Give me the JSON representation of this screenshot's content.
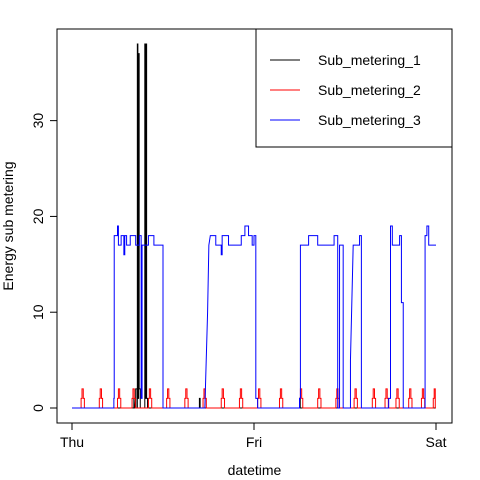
{
  "chart_data": {
    "type": "line",
    "title": "",
    "xlabel": "datetime",
    "ylabel": "Energy sub metering",
    "x_unit": "day",
    "xlim": [
      0,
      2
    ],
    "ylim": [
      0,
      38
    ],
    "x_ticks": [
      {
        "value": 0,
        "label": "Thu"
      },
      {
        "value": 1,
        "label": "Fri"
      },
      {
        "value": 2,
        "label": "Sat"
      }
    ],
    "y_ticks": [
      0,
      10,
      20,
      30
    ],
    "legend_position": "top-right",
    "grid": false,
    "series": [
      {
        "name": "Sub_metering_1",
        "color": "#000000",
        "points": [
          [
            0.0,
            0
          ],
          [
            0.34,
            0
          ],
          [
            0.34,
            1
          ],
          [
            0.345,
            0
          ],
          [
            0.35,
            0
          ],
          [
            0.35,
            2
          ],
          [
            0.358,
            2
          ],
          [
            0.358,
            0
          ],
          [
            0.359,
            0
          ],
          [
            0.359,
            38
          ],
          [
            0.362,
            38
          ],
          [
            0.362,
            1
          ],
          [
            0.366,
            1
          ],
          [
            0.366,
            37
          ],
          [
            0.369,
            37
          ],
          [
            0.369,
            2
          ],
          [
            0.375,
            2
          ],
          [
            0.375,
            0
          ],
          [
            0.4,
            0
          ],
          [
            0.4,
            38
          ],
          [
            0.403,
            38
          ],
          [
            0.403,
            1
          ],
          [
            0.407,
            1
          ],
          [
            0.407,
            38
          ],
          [
            0.41,
            38
          ],
          [
            0.41,
            1
          ],
          [
            0.415,
            1
          ],
          [
            0.415,
            0
          ],
          [
            0.7,
            0
          ],
          [
            0.7,
            1
          ],
          [
            0.704,
            1
          ],
          [
            0.704,
            0
          ],
          [
            1.25,
            0
          ],
          [
            1.25,
            1
          ],
          [
            1.254,
            1
          ],
          [
            1.254,
            0
          ],
          [
            2.0,
            0
          ]
        ]
      },
      {
        "name": "Sub_metering_2",
        "color": "#ff0000",
        "points": [
          [
            0.0,
            0
          ],
          [
            0.05,
            0
          ],
          [
            0.05,
            1
          ],
          [
            0.055,
            1
          ],
          [
            0.055,
            2
          ],
          [
            0.062,
            2
          ],
          [
            0.062,
            1
          ],
          [
            0.068,
            1
          ],
          [
            0.068,
            0
          ],
          [
            0.15,
            0
          ],
          [
            0.15,
            1
          ],
          [
            0.155,
            1
          ],
          [
            0.155,
            2
          ],
          [
            0.162,
            2
          ],
          [
            0.162,
            1
          ],
          [
            0.168,
            1
          ],
          [
            0.168,
            0
          ],
          [
            0.25,
            0
          ],
          [
            0.25,
            1
          ],
          [
            0.255,
            1
          ],
          [
            0.255,
            2
          ],
          [
            0.262,
            2
          ],
          [
            0.262,
            1
          ],
          [
            0.268,
            1
          ],
          [
            0.268,
            0
          ],
          [
            0.33,
            0
          ],
          [
            0.33,
            1
          ],
          [
            0.335,
            1
          ],
          [
            0.335,
            2
          ],
          [
            0.342,
            2
          ],
          [
            0.342,
            1
          ],
          [
            0.348,
            1
          ],
          [
            0.348,
            0
          ],
          [
            0.42,
            0
          ],
          [
            0.42,
            1
          ],
          [
            0.425,
            1
          ],
          [
            0.425,
            2
          ],
          [
            0.432,
            2
          ],
          [
            0.432,
            1
          ],
          [
            0.438,
            1
          ],
          [
            0.438,
            0
          ],
          [
            0.52,
            0
          ],
          [
            0.52,
            1
          ],
          [
            0.525,
            1
          ],
          [
            0.525,
            2
          ],
          [
            0.532,
            2
          ],
          [
            0.532,
            1
          ],
          [
            0.538,
            1
          ],
          [
            0.538,
            0
          ],
          [
            0.62,
            0
          ],
          [
            0.62,
            1
          ],
          [
            0.625,
            1
          ],
          [
            0.625,
            2
          ],
          [
            0.632,
            2
          ],
          [
            0.632,
            1
          ],
          [
            0.638,
            1
          ],
          [
            0.638,
            0
          ],
          [
            0.72,
            0
          ],
          [
            0.72,
            1
          ],
          [
            0.725,
            1
          ],
          [
            0.725,
            2
          ],
          [
            0.732,
            2
          ],
          [
            0.732,
            1
          ],
          [
            0.738,
            1
          ],
          [
            0.738,
            0
          ],
          [
            0.82,
            0
          ],
          [
            0.82,
            1
          ],
          [
            0.825,
            1
          ],
          [
            0.825,
            2
          ],
          [
            0.832,
            2
          ],
          [
            0.832,
            1
          ],
          [
            0.838,
            1
          ],
          [
            0.838,
            0
          ],
          [
            0.92,
            0
          ],
          [
            0.92,
            1
          ],
          [
            0.925,
            1
          ],
          [
            0.925,
            2
          ],
          [
            0.932,
            2
          ],
          [
            0.932,
            1
          ],
          [
            0.938,
            1
          ],
          [
            0.938,
            0
          ],
          [
            1.02,
            0
          ],
          [
            1.02,
            1
          ],
          [
            1.025,
            1
          ],
          [
            1.025,
            2
          ],
          [
            1.032,
            2
          ],
          [
            1.032,
            1
          ],
          [
            1.038,
            1
          ],
          [
            1.038,
            0
          ],
          [
            1.14,
            0
          ],
          [
            1.14,
            1
          ],
          [
            1.145,
            1
          ],
          [
            1.145,
            2
          ],
          [
            1.152,
            2
          ],
          [
            1.152,
            1
          ],
          [
            1.158,
            1
          ],
          [
            1.158,
            0
          ],
          [
            1.25,
            0
          ],
          [
            1.25,
            1
          ],
          [
            1.255,
            1
          ],
          [
            1.255,
            2
          ],
          [
            1.262,
            2
          ],
          [
            1.262,
            1
          ],
          [
            1.268,
            1
          ],
          [
            1.268,
            0
          ],
          [
            1.35,
            0
          ],
          [
            1.35,
            1
          ],
          [
            1.355,
            1
          ],
          [
            1.355,
            2
          ],
          [
            1.362,
            2
          ],
          [
            1.362,
            1
          ],
          [
            1.368,
            1
          ],
          [
            1.368,
            0
          ],
          [
            1.45,
            0
          ],
          [
            1.45,
            1
          ],
          [
            1.455,
            1
          ],
          [
            1.455,
            2
          ],
          [
            1.462,
            2
          ],
          [
            1.462,
            1
          ],
          [
            1.468,
            1
          ],
          [
            1.468,
            0
          ],
          [
            1.55,
            0
          ],
          [
            1.55,
            1
          ],
          [
            1.555,
            1
          ],
          [
            1.555,
            2
          ],
          [
            1.562,
            2
          ],
          [
            1.562,
            1
          ],
          [
            1.568,
            1
          ],
          [
            1.568,
            0
          ],
          [
            1.65,
            0
          ],
          [
            1.65,
            1
          ],
          [
            1.655,
            1
          ],
          [
            1.655,
            2
          ],
          [
            1.662,
            2
          ],
          [
            1.662,
            1
          ],
          [
            1.668,
            1
          ],
          [
            1.668,
            0
          ],
          [
            1.72,
            0
          ],
          [
            1.72,
            1
          ],
          [
            1.725,
            1
          ],
          [
            1.725,
            2
          ],
          [
            1.732,
            2
          ],
          [
            1.732,
            1
          ],
          [
            1.738,
            1
          ],
          [
            1.738,
            0
          ],
          [
            1.78,
            0
          ],
          [
            1.78,
            1
          ],
          [
            1.785,
            1
          ],
          [
            1.785,
            2
          ],
          [
            1.792,
            2
          ],
          [
            1.792,
            1
          ],
          [
            1.798,
            1
          ],
          [
            1.798,
            0
          ],
          [
            1.85,
            0
          ],
          [
            1.85,
            1
          ],
          [
            1.855,
            1
          ],
          [
            1.855,
            2
          ],
          [
            1.862,
            2
          ],
          [
            1.862,
            1
          ],
          [
            1.868,
            1
          ],
          [
            1.868,
            0
          ],
          [
            1.92,
            0
          ],
          [
            1.92,
            1
          ],
          [
            1.925,
            1
          ],
          [
            1.925,
            2
          ],
          [
            1.932,
            2
          ],
          [
            1.932,
            1
          ],
          [
            1.938,
            1
          ],
          [
            1.938,
            0
          ],
          [
            1.985,
            0
          ],
          [
            1.985,
            1
          ],
          [
            1.99,
            1
          ],
          [
            1.99,
            2
          ],
          [
            1.996,
            2
          ],
          [
            1.996,
            0
          ],
          [
            2.0,
            0
          ]
        ]
      },
      {
        "name": "Sub_metering_3",
        "color": "#0000ff",
        "points": [
          [
            0.0,
            0
          ],
          [
            0.23,
            0
          ],
          [
            0.23,
            1
          ],
          [
            0.232,
            1
          ],
          [
            0.232,
            18
          ],
          [
            0.25,
            18
          ],
          [
            0.25,
            19
          ],
          [
            0.255,
            19
          ],
          [
            0.255,
            17
          ],
          [
            0.27,
            17
          ],
          [
            0.27,
            18
          ],
          [
            0.285,
            18
          ],
          [
            0.285,
            16
          ],
          [
            0.29,
            16
          ],
          [
            0.29,
            18
          ],
          [
            0.3,
            18
          ],
          [
            0.3,
            17
          ],
          [
            0.32,
            17
          ],
          [
            0.32,
            18
          ],
          [
            0.35,
            18
          ],
          [
            0.35,
            17
          ],
          [
            0.37,
            17
          ],
          [
            0.37,
            18
          ],
          [
            0.38,
            18
          ],
          [
            0.38,
            1
          ],
          [
            0.385,
            1
          ],
          [
            0.385,
            17
          ],
          [
            0.42,
            17
          ],
          [
            0.42,
            18
          ],
          [
            0.45,
            18
          ],
          [
            0.45,
            17
          ],
          [
            0.5,
            17
          ],
          [
            0.5,
            0
          ],
          [
            0.73,
            0
          ],
          [
            0.745,
            10
          ],
          [
            0.752,
            17
          ],
          [
            0.76,
            18
          ],
          [
            0.79,
            18
          ],
          [
            0.79,
            17
          ],
          [
            0.82,
            17
          ],
          [
            0.82,
            16
          ],
          [
            0.825,
            16
          ],
          [
            0.825,
            18
          ],
          [
            0.86,
            18
          ],
          [
            0.86,
            17
          ],
          [
            0.93,
            17
          ],
          [
            0.93,
            18
          ],
          [
            0.95,
            18
          ],
          [
            0.95,
            19
          ],
          [
            0.97,
            19
          ],
          [
            0.97,
            18
          ],
          [
            0.99,
            18
          ],
          [
            0.99,
            17
          ],
          [
            1.0,
            17
          ],
          [
            1.0,
            18
          ],
          [
            1.01,
            18
          ],
          [
            1.01,
            1
          ],
          [
            1.02,
            1
          ],
          [
            1.02,
            0
          ],
          [
            1.25,
            0
          ],
          [
            1.25,
            1
          ],
          [
            1.255,
            1
          ],
          [
            1.255,
            17
          ],
          [
            1.3,
            17
          ],
          [
            1.3,
            18
          ],
          [
            1.35,
            18
          ],
          [
            1.35,
            17
          ],
          [
            1.44,
            17
          ],
          [
            1.44,
            18
          ],
          [
            1.46,
            18
          ],
          [
            1.46,
            0
          ],
          [
            1.47,
            0
          ],
          [
            1.47,
            17
          ],
          [
            1.49,
            17
          ],
          [
            1.49,
            0
          ],
          [
            1.53,
            0
          ],
          [
            1.53,
            5
          ],
          [
            1.545,
            17
          ],
          [
            1.58,
            17
          ],
          [
            1.58,
            18
          ],
          [
            1.59,
            18
          ],
          [
            1.59,
            0
          ],
          [
            1.74,
            0
          ],
          [
            1.74,
            1
          ],
          [
            1.75,
            1
          ],
          [
            1.75,
            19
          ],
          [
            1.76,
            19
          ],
          [
            1.76,
            17
          ],
          [
            1.8,
            17
          ],
          [
            1.8,
            18
          ],
          [
            1.81,
            18
          ],
          [
            1.81,
            11
          ],
          [
            1.82,
            11
          ],
          [
            1.82,
            0
          ],
          [
            1.94,
            0
          ],
          [
            1.94,
            18
          ],
          [
            1.95,
            18
          ],
          [
            1.95,
            19
          ],
          [
            1.96,
            19
          ],
          [
            1.96,
            17
          ],
          [
            2.0,
            17
          ]
        ]
      }
    ]
  }
}
